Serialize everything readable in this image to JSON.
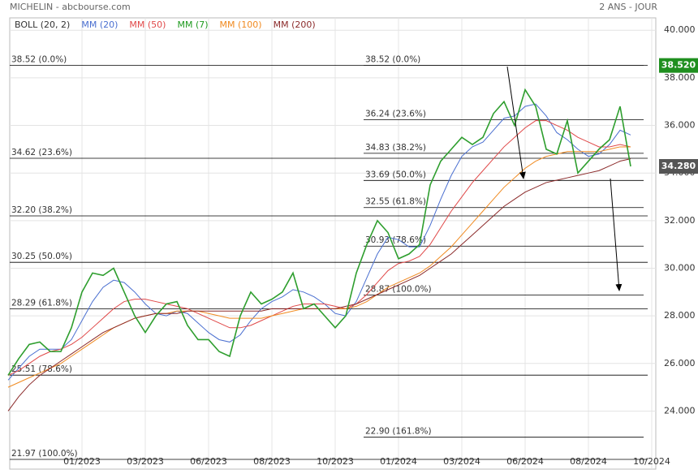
{
  "header": {
    "title": "MICHELIN - abcbourse.com",
    "period": "2 ANS - JOUR"
  },
  "chart_data": {
    "type": "line",
    "categories": [
      null,
      null,
      null,
      null,
      null,
      null,
      null,
      "01/2023",
      null,
      null,
      null,
      null,
      null,
      "03/2023",
      null,
      null,
      null,
      null,
      null,
      "06/2023",
      null,
      null,
      null,
      null,
      null,
      "08/2023",
      null,
      null,
      null,
      null,
      null,
      "10/2023",
      null,
      null,
      null,
      null,
      null,
      "01/2024",
      null,
      null,
      null,
      null,
      null,
      "03/2024",
      null,
      null,
      null,
      null,
      null,
      "06/2024",
      null,
      null,
      null,
      null,
      null,
      "08/2024",
      null,
      null,
      null,
      null,
      null,
      "10/2024"
    ],
    "values": [
      25.5,
      26.2,
      26.8,
      26.9,
      26.5,
      26.5,
      27.5,
      29.0,
      29.8,
      29.7,
      30.0,
      29.0,
      28.0,
      27.3,
      28.0,
      28.5,
      28.6,
      27.6,
      27.0,
      27.0,
      26.5,
      26.3,
      28.0,
      29.0,
      28.5,
      28.7,
      29.0,
      29.8,
      28.3,
      28.5,
      28.0,
      27.5,
      28.0,
      29.8,
      31.0,
      32.0,
      31.5,
      30.4,
      30.6,
      31.0,
      33.5,
      34.5,
      35.0,
      35.5,
      35.2,
      35.5,
      36.5,
      37.0,
      36.0,
      37.5,
      36.8,
      35.0,
      34.8,
      36.2,
      34.0,
      34.5,
      35.0,
      35.4,
      36.8,
      34.28,
      null,
      null
    ],
    "color": "#2e9e2e",
    "series": [
      {
        "name": "BOLL (20, 2)",
        "color": "#333333"
      },
      {
        "name": "MM (20)",
        "color": "#4a6fd0",
        "values": [
          25.3,
          25.8,
          26.3,
          26.6,
          26.6,
          26.6,
          27.0,
          27.8,
          28.6,
          29.2,
          29.5,
          29.4,
          29.0,
          28.5,
          28.1,
          28.0,
          28.2,
          28.1,
          27.7,
          27.3,
          27.0,
          26.9,
          27.2,
          27.8,
          28.3,
          28.6,
          28.8,
          29.1,
          29.0,
          28.8,
          28.5,
          28.1,
          28.0,
          28.6,
          29.6,
          30.6,
          31.3,
          31.2,
          30.9,
          30.9,
          31.8,
          32.9,
          33.9,
          34.7,
          35.1,
          35.3,
          35.8,
          36.3,
          36.4,
          36.8,
          36.9,
          36.4,
          35.7,
          35.4,
          35.0,
          34.7,
          34.8,
          35.2,
          35.8,
          35.6,
          null,
          null
        ]
      },
      {
        "name": "MM (50)",
        "color": "#e04848",
        "values": [
          25.5,
          25.7,
          26.0,
          26.3,
          26.5,
          26.6,
          26.8,
          27.1,
          27.5,
          27.9,
          28.3,
          28.6,
          28.7,
          28.7,
          28.6,
          28.5,
          28.4,
          28.3,
          28.1,
          27.9,
          27.7,
          27.5,
          27.5,
          27.6,
          27.8,
          28.0,
          28.2,
          28.4,
          28.5,
          28.5,
          28.5,
          28.4,
          28.3,
          28.5,
          28.9,
          29.4,
          29.9,
          30.2,
          30.3,
          30.5,
          31.0,
          31.7,
          32.4,
          33.0,
          33.6,
          34.1,
          34.6,
          35.1,
          35.5,
          35.9,
          36.2,
          36.2,
          36.0,
          35.8,
          35.5,
          35.3,
          35.1,
          35.1,
          35.2,
          35.1,
          null,
          null
        ]
      },
      {
        "name": "MM (7)",
        "color": "#1f9a1f"
      },
      {
        "name": "MM (100)",
        "color": "#f08a20",
        "values": [
          25.0,
          25.2,
          25.4,
          25.6,
          25.8,
          26.0,
          26.3,
          26.6,
          26.9,
          27.2,
          27.5,
          27.7,
          27.9,
          28.0,
          28.1,
          28.1,
          28.2,
          28.2,
          28.2,
          28.1,
          28.0,
          27.9,
          27.9,
          27.9,
          27.9,
          28.0,
          28.1,
          28.2,
          28.3,
          28.3,
          28.3,
          28.3,
          28.3,
          28.4,
          28.6,
          28.9,
          29.2,
          29.4,
          29.6,
          29.8,
          30.1,
          30.5,
          30.9,
          31.4,
          31.9,
          32.4,
          32.9,
          33.4,
          33.8,
          34.2,
          34.5,
          34.7,
          34.8,
          34.9,
          34.9,
          34.9,
          34.9,
          35.0,
          35.1,
          35.1,
          null,
          null
        ]
      },
      {
        "name": "MM (200)",
        "color": "#8b2a2a",
        "values": [
          24.0,
          24.6,
          25.1,
          25.5,
          25.8,
          26.1,
          26.4,
          26.7,
          27.0,
          27.3,
          27.5,
          27.7,
          27.9,
          28.0,
          28.1,
          28.1,
          28.1,
          28.2,
          28.2,
          28.2,
          28.2,
          28.2,
          28.2,
          28.2,
          28.2,
          28.3,
          28.3,
          28.3,
          28.3,
          28.3,
          28.3,
          28.3,
          28.4,
          28.5,
          28.7,
          28.9,
          29.1,
          29.3,
          29.5,
          29.7,
          30.0,
          30.3,
          30.6,
          31.0,
          31.4,
          31.8,
          32.2,
          32.6,
          32.9,
          33.2,
          33.4,
          33.6,
          33.7,
          33.8,
          33.9,
          34.0,
          34.1,
          34.3,
          34.5,
          34.6,
          null,
          null
        ]
      }
    ],
    "ylim": [
      21.56,
      40.52
    ],
    "yticks": [
      {
        "value": 24,
        "label": "24.000"
      },
      {
        "value": 26,
        "label": "26.000"
      },
      {
        "value": 28,
        "label": "28.000"
      },
      {
        "value": 30,
        "label": "30.000"
      },
      {
        "value": 32,
        "label": "32.000"
      },
      {
        "value": 34,
        "label": "34.000"
      },
      {
        "value": 36,
        "label": "36.000"
      },
      {
        "value": 38,
        "label": "38.000"
      },
      {
        "value": 40,
        "label": "40.000"
      }
    ],
    "grid": true,
    "fib_sets": [
      {
        "levels": [
          {
            "price": 38.52,
            "label": "38.52  (0.0%)"
          },
          {
            "price": 34.62,
            "label": "34.62  (23.6%)"
          },
          {
            "price": 32.2,
            "label": "32.20  (38.2%)"
          },
          {
            "price": 30.25,
            "label": "30.25  (50.0%)"
          },
          {
            "price": 28.29,
            "label": "28.29  (61.8%)"
          },
          {
            "price": 25.51,
            "label": "25.51  (78.6%)"
          },
          {
            "price": 21.97,
            "label": "21.97  (100.0%)"
          }
        ]
      },
      {
        "levels": [
          {
            "price": 38.52,
            "label": "38.52  (0.0%)"
          },
          {
            "price": 36.24,
            "label": "36.24  (23.6%)"
          },
          {
            "price": 34.83,
            "label": "34.83  (38.2%)"
          },
          {
            "price": 33.69,
            "label": "33.69  (50.0%)"
          },
          {
            "price": 32.55,
            "label": "32.55  (61.8%)"
          },
          {
            "price": 30.93,
            "label": "30.93  (78.6%)"
          },
          {
            "price": 28.87,
            "label": "28.87  (100.0%)"
          },
          {
            "price": 22.9,
            "label": "22.90  (161.8%)"
          }
        ]
      }
    ],
    "price_tags": [
      {
        "value": 38.52,
        "label": "38.520",
        "color": "#1f8f1f"
      },
      {
        "value": 34.28,
        "label": "34.280",
        "color": "#555555"
      }
    ]
  }
}
